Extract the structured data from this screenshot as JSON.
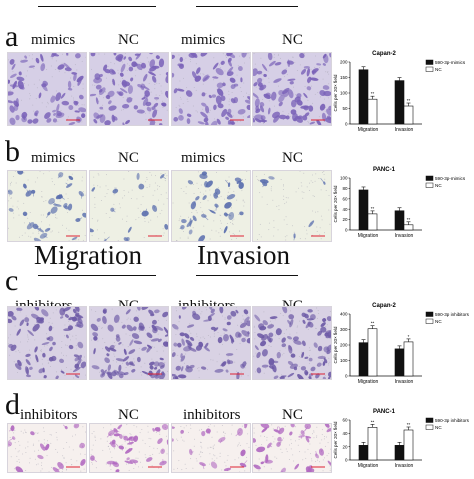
{
  "headers": {
    "migration": "Migration",
    "invasion": "Invasion"
  },
  "panels": [
    {
      "letter": "a",
      "labels": [
        "mimics",
        "NC",
        "mimics",
        "NC"
      ],
      "style": "dense",
      "tint": "#d6cfe6",
      "cell": "#7a62b8"
    },
    {
      "letter": "b",
      "labels": [
        "mimics",
        "NC",
        "mimics",
        "NC"
      ],
      "style": "sparse",
      "tint": "#eef0e4",
      "cell": "#5b6fae"
    },
    {
      "letter": "c",
      "labels": [
        "inhibitors",
        "NC",
        "inhibitors",
        "NC"
      ],
      "style": "dense",
      "tint": "#d9d2e4",
      "cell": "#6d5aa6"
    },
    {
      "letter": "d",
      "labels": [
        "inhibitors",
        "NC",
        "inhibitors",
        "NC"
      ],
      "style": "pink",
      "tint": "#f6f0ee",
      "cell": "#b068c0"
    }
  ],
  "chart_data": [
    {
      "type": "bar",
      "title": "Capan-2",
      "ylabel": "Cells per 20× field",
      "categories": [
        "Migration",
        "Invasion"
      ],
      "ylim": [
        0,
        200
      ],
      "yticks": [
        "0",
        "50",
        "100",
        "150",
        "200"
      ],
      "series": [
        {
          "name": "590-3p-mimics",
          "color": "#111111",
          "values": [
            175,
            140
          ]
        },
        {
          "name": "NC",
          "color": "#ffffff",
          "values": [
            80,
            58
          ]
        }
      ],
      "annotations": [
        "**",
        "**"
      ]
    },
    {
      "type": "bar",
      "title": "PANC-1",
      "ylabel": "Cells per 20× field",
      "categories": [
        "Migration",
        "Invasion"
      ],
      "ylim": [
        0,
        100
      ],
      "yticks": [
        "0",
        "20",
        "40",
        "60",
        "80",
        "100"
      ],
      "series": [
        {
          "name": "590-3p-mimics",
          "color": "#111111",
          "values": [
            77,
            37
          ]
        },
        {
          "name": "NC",
          "color": "#ffffff",
          "values": [
            31,
            10
          ]
        }
      ],
      "annotations": [
        "**",
        "**"
      ]
    },
    {
      "type": "bar",
      "title": "Capan-2",
      "ylabel": "Cells per 20× field",
      "categories": [
        "Migration",
        "Invasion"
      ],
      "ylim": [
        0,
        400
      ],
      "yticks": [
        "0",
        "100",
        "200",
        "300",
        "400"
      ],
      "series": [
        {
          "name": "590-3p inhibitors",
          "color": "#111111",
          "values": [
            215,
            175
          ]
        },
        {
          "name": "NC",
          "color": "#ffffff",
          "values": [
            305,
            220
          ]
        }
      ],
      "annotations": [
        "**",
        "*"
      ]
    },
    {
      "type": "bar",
      "title": "PANC-1",
      "ylabel": "Cells per 20× field",
      "categories": [
        "Migration",
        "Invasion"
      ],
      "ylim": [
        0,
        60
      ],
      "yticks": [
        "0",
        "20",
        "40",
        "60"
      ],
      "series": [
        {
          "name": "590-3p inhibitors",
          "color": "#111111",
          "values": [
            22,
            22
          ]
        },
        {
          "name": "NC",
          "color": "#ffffff",
          "values": [
            49,
            45
          ]
        }
      ],
      "annotations": [
        "**",
        "**"
      ]
    }
  ]
}
